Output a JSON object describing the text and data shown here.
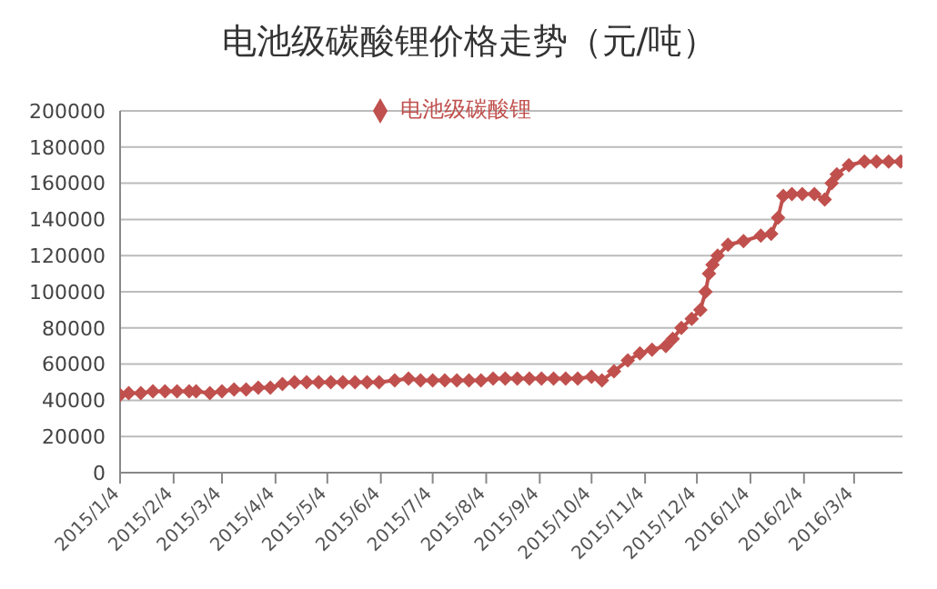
{
  "chart_data": {
    "type": "line",
    "title": "电池级碳酸锂价格走势（元/吨）",
    "x": [
      "2015-01-04",
      "2015-01-09",
      "2015-01-16",
      "2015-01-23",
      "2015-01-30",
      "2015-02-06",
      "2015-02-13",
      "2015-02-17",
      "2015-02-25",
      "2015-03-04",
      "2015-03-11",
      "2015-03-18",
      "2015-03-25",
      "2015-04-01",
      "2015-04-08",
      "2015-04-15",
      "2015-04-22",
      "2015-04-29",
      "2015-05-06",
      "2015-05-13",
      "2015-05-20",
      "2015-05-27",
      "2015-06-03",
      "2015-06-12",
      "2015-06-20",
      "2015-06-27",
      "2015-07-04",
      "2015-07-11",
      "2015-07-18",
      "2015-07-25",
      "2015-08-01",
      "2015-08-08",
      "2015-08-15",
      "2015-08-22",
      "2015-08-29",
      "2015-09-05",
      "2015-09-12",
      "2015-09-19",
      "2015-09-26",
      "2015-10-04",
      "2015-10-10",
      "2015-10-17",
      "2015-10-25",
      "2015-11-01",
      "2015-11-08",
      "2015-11-16",
      "2015-11-20",
      "2015-11-25",
      "2015-12-01",
      "2015-12-06",
      "2015-12-09",
      "2015-12-11",
      "2015-12-13",
      "2015-12-16",
      "2015-12-22",
      "2015-12-31",
      "2016-01-10",
      "2016-01-16",
      "2016-01-20",
      "2016-01-23",
      "2016-01-28",
      "2016-02-03",
      "2016-02-10",
      "2016-02-16",
      "2016-02-20",
      "2016-02-23",
      "2016-03-01",
      "2016-03-10",
      "2016-03-17",
      "2016-03-24",
      "2016-03-31"
    ],
    "series": [
      {
        "name": "电池级碳酸锂",
        "color": "#c0504d",
        "values": [
          43000,
          44000,
          44000,
          45000,
          45000,
          45000,
          45000,
          45000,
          44000,
          45000,
          46000,
          46000,
          47000,
          47000,
          49000,
          50000,
          50000,
          50000,
          50000,
          50000,
          50000,
          50000,
          50000,
          51000,
          52000,
          51000,
          51000,
          51000,
          51000,
          51000,
          51000,
          52000,
          52000,
          52000,
          52000,
          52000,
          52000,
          52000,
          52000,
          53000,
          51000,
          56000,
          62000,
          66000,
          68000,
          70000,
          74000,
          80000,
          85000,
          90000,
          100000,
          110000,
          115000,
          120000,
          126000,
          128000,
          131000,
          132000,
          141000,
          153000,
          154000,
          154000,
          154000,
          151000,
          160000,
          165000,
          170000,
          172000,
          172000,
          172000,
          172000
        ]
      }
    ],
    "xlim": [
      "2015-01-04",
      "2016-04-01"
    ],
    "xticks": [
      {
        "value": "2015-01-04",
        "label": "2015/1/4"
      },
      {
        "value": "2015-02-04",
        "label": "2015/2/4"
      },
      {
        "value": "2015-03-04",
        "label": "2015/3/4"
      },
      {
        "value": "2015-04-04",
        "label": "2015/4/4"
      },
      {
        "value": "2015-05-04",
        "label": "2015/5/4"
      },
      {
        "value": "2015-06-04",
        "label": "2015/6/4"
      },
      {
        "value": "2015-07-04",
        "label": "2015/7/4"
      },
      {
        "value": "2015-08-04",
        "label": "2015/8/4"
      },
      {
        "value": "2015-09-04",
        "label": "2015/9/4"
      },
      {
        "value": "2015-10-04",
        "label": "2015/10/4"
      },
      {
        "value": "2015-11-04",
        "label": "2015/11/4"
      },
      {
        "value": "2015-12-04",
        "label": "2015/12/4"
      },
      {
        "value": "2016-01-04",
        "label": "2016/1/4"
      },
      {
        "value": "2016-02-04",
        "label": "2016/2/4"
      },
      {
        "value": "2016-03-04",
        "label": "2016/3/4"
      }
    ],
    "ylim": [
      0,
      200000
    ],
    "yticks": [
      0,
      20000,
      40000,
      60000,
      80000,
      100000,
      120000,
      140000,
      160000,
      180000,
      200000
    ],
    "grid": "y",
    "legend": "top",
    "marker": "diamond",
    "line_style": "solid"
  }
}
